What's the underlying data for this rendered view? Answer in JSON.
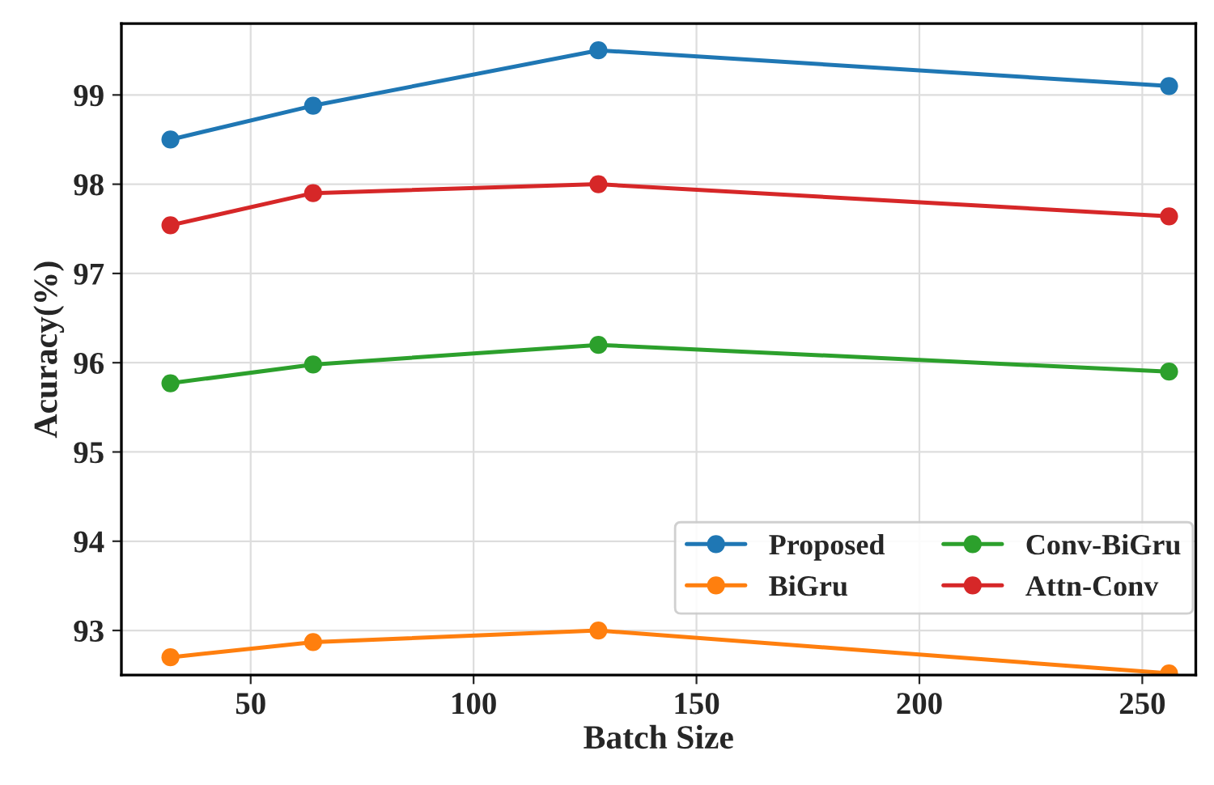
{
  "chart_data": {
    "type": "line",
    "xlabel": "Batch Size",
    "ylabel": "Acuracy(%)",
    "x": [
      32,
      64,
      128,
      256
    ],
    "series": [
      {
        "name": "Proposed",
        "color": "#1f77b4",
        "values": [
          98.5,
          98.88,
          99.5,
          99.1
        ]
      },
      {
        "name": "BiGru",
        "color": "#ff7f0e",
        "values": [
          92.7,
          92.87,
          93.0,
          92.52
        ]
      },
      {
        "name": "Conv-BiGru",
        "color": "#2ca02c",
        "values": [
          95.77,
          95.98,
          96.2,
          95.9
        ]
      },
      {
        "name": "Attn-Conv",
        "color": "#d62728",
        "values": [
          97.54,
          97.9,
          98.0,
          97.64
        ]
      }
    ],
    "xlim": [
      21,
      262
    ],
    "ylim": [
      92.5,
      99.8
    ],
    "xticks": [
      50,
      100,
      150,
      200,
      250
    ],
    "yticks": [
      93,
      94,
      95,
      96,
      97,
      98,
      99
    ],
    "grid": true,
    "legend": "bottom right",
    "marker": "circle",
    "line_style": "solid"
  }
}
